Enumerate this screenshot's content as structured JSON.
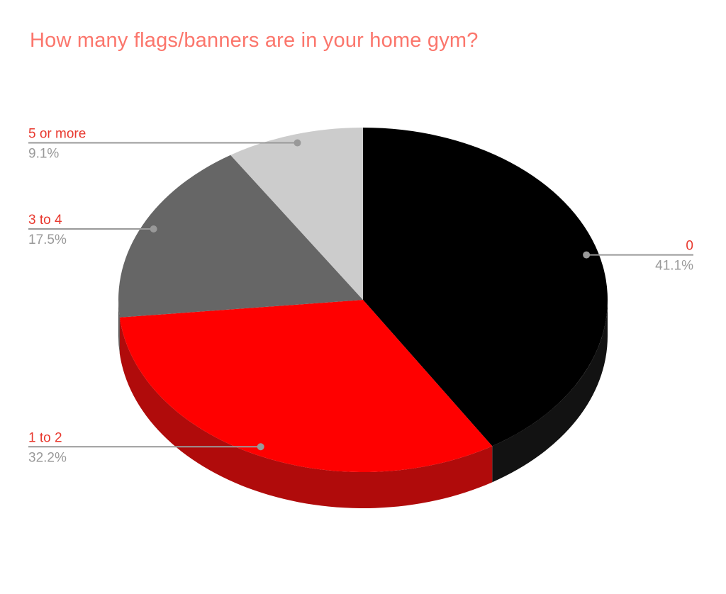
{
  "title": {
    "text": "How many flags/banners are in your home gym?",
    "color": "#fb766c"
  },
  "chart_data": {
    "type": "pie",
    "style": "3d",
    "title": "How many flags/banners are in your home gym?",
    "categories": [
      "0",
      "1 to 2",
      "3 to 4",
      "5 or more"
    ],
    "values": [
      41.1,
      32.2,
      17.5,
      9.1
    ],
    "percent_labels": [
      "41.1%",
      "32.2%",
      "17.5%",
      "9.1%"
    ],
    "slice_colors": [
      "#000000",
      "#ff0000",
      "#666666",
      "#cccccc"
    ],
    "side_colors": [
      "#121212",
      "#b00b0b",
      "#4d4d4d",
      "#a8a8a8"
    ],
    "label_color": "#e8382e",
    "percent_color": "#999999",
    "callout_color": "#999999",
    "background": "#ffffff",
    "start_angle": 0,
    "legend_position": "labeled-callouts",
    "grid": false
  }
}
